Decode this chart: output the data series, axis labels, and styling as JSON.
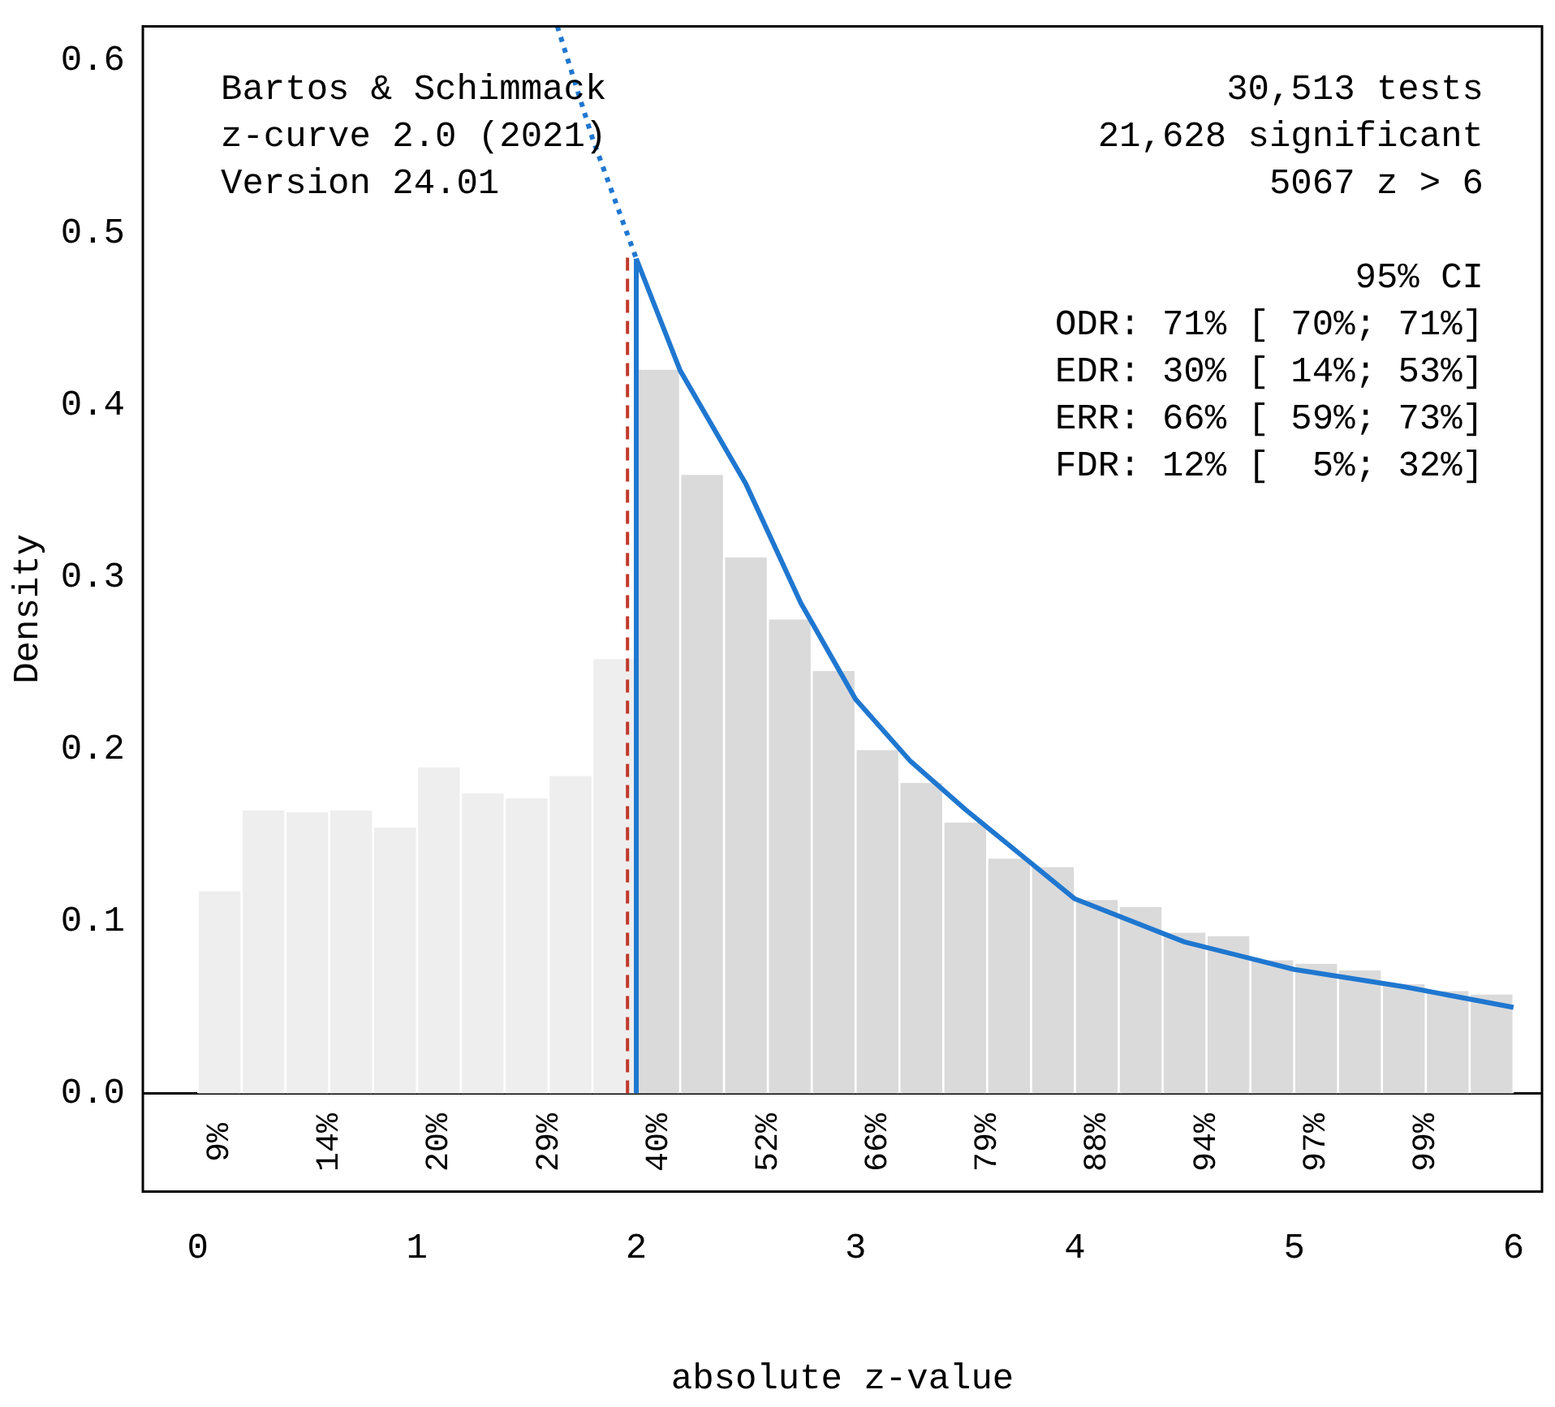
{
  "chart_data": {
    "type": "histogram",
    "xlabel": "absolute z-value",
    "ylabel": "Density",
    "bins": [
      0,
      0.2,
      0.4,
      0.6,
      0.8,
      1,
      1.2,
      1.4,
      1.6,
      1.8,
      2,
      2.2,
      2.4,
      2.6,
      2.8,
      3,
      3.2,
      3.4,
      3.6,
      3.8,
      4,
      4.2,
      4.4,
      4.6,
      4.8,
      5,
      5.2,
      5.4,
      5.6,
      5.8,
      6
    ],
    "values": [
      0.118,
      0.165,
      0.164,
      0.165,
      0.155,
      0.19,
      0.175,
      0.172,
      0.185,
      0.253,
      0.421,
      0.36,
      0.312,
      0.276,
      0.246,
      0.2,
      0.181,
      0.158,
      0.137,
      0.132,
      0.113,
      0.109,
      0.094,
      0.092,
      0.078,
      0.076,
      0.072,
      0.064,
      0.06,
      0.058
    ],
    "colors": [
      "#eeeeee",
      "#eeeeee",
      "#eeeeee",
      "#eeeeee",
      "#eeeeee",
      "#eeeeee",
      "#eeeeee",
      "#eeeeee",
      "#eeeeee",
      "#eeeeee",
      "#dadada",
      "#dadada",
      "#dadada",
      "#dadada",
      "#dadada",
      "#dadada",
      "#dadada",
      "#dadada",
      "#dadada",
      "#dadada",
      "#dadada",
      "#dadada",
      "#dadada",
      "#dadada",
      "#dadada",
      "#dadada",
      "#dadada",
      "#dadada",
      "#dadada",
      "#dadada"
    ],
    "series": [
      {
        "type": "line",
        "color": "#1f77d0",
        "line_style": "solid",
        "x": [
          2,
          2.2,
          2.5,
          2.75,
          3,
          3.25,
          3.5,
          4,
          4.5,
          5,
          5.5,
          6
        ],
        "values": [
          0.485,
          0.42,
          0.354,
          0.285,
          0.229,
          0.193,
          0.165,
          0.113,
          0.088,
          0.072,
          0.062,
          0.05
        ]
      },
      {
        "type": "line",
        "color": "#1f77d0",
        "line_style": "dotted",
        "x": [
          1.64,
          1.8,
          2
        ],
        "values": [
          0.62,
          0.555,
          0.485
        ]
      },
      {
        "type": "line",
        "color": "#1f77d0",
        "line_style": "solid",
        "x": [
          2,
          2
        ],
        "values": [
          0,
          0.485
        ]
      }
    ],
    "ref_lines": [
      {
        "axis": "x",
        "value": 1.96,
        "color": "#c0392b",
        "line_style": "dashed"
      }
    ],
    "xlim": [
      -0.25,
      6.13
    ],
    "xticks": [
      0,
      1,
      2,
      3,
      4,
      5,
      6
    ],
    "ylim": [
      -0.057,
      0.62
    ],
    "yticks": [
      {
        "value": 0,
        "label": "0.0"
      },
      0.1,
      0.2,
      0.3,
      0.4,
      0.5,
      0.6
    ],
    "grid": false,
    "legend": false,
    "annotations": [
      "Bartos & Schimmack",
      "z-curve 2.0 (2021)",
      "Version 24.01",
      "30,513 tests",
      "21,628 significant",
      "5067 z > 6",
      "95% CI",
      "ODR: 71% [ 70%; 71%]",
      "EDR: 30% [ 14%; 53%]",
      "ERR: 66% [ 59%; 73%]",
      "FDR: 12% [  5%; 32%]",
      "9%",
      "14%",
      "20%",
      "29%",
      "40%",
      "52%",
      "66%",
      "79%",
      "88%",
      "94%",
      "97%",
      "99%"
    ]
  }
}
